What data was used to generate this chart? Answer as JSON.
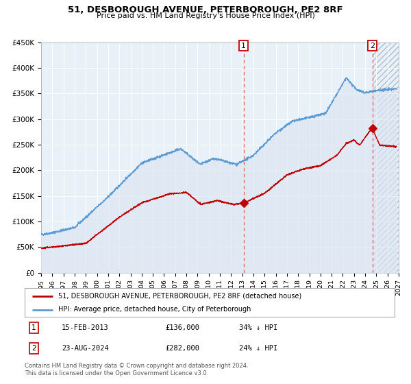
{
  "title": "51, DESBOROUGH AVENUE, PETERBOROUGH, PE2 8RF",
  "subtitle": "Price paid vs. HM Land Registry's House Price Index (HPI)",
  "legend_line1": "51, DESBOROUGH AVENUE, PETERBOROUGH, PE2 8RF (detached house)",
  "legend_line2": "HPI: Average price, detached house, City of Peterborough",
  "copyright": "Contains HM Land Registry data © Crown copyright and database right 2024.\nThis data is licensed under the Open Government Licence v3.0.",
  "sale1_date": 2013.12,
  "sale1_price": 136000,
  "sale2_date": 2024.64,
  "sale2_price": 282000,
  "hpi_color": "#5b9bd5",
  "price_color": "#c00000",
  "hpi_fill_color": "#dce6f1",
  "hatch_color": "#b0bcd0",
  "vline_color": "#e06060",
  "ylim": [
    0,
    450000
  ],
  "xlim_start": 1995,
  "xlim_end": 2027,
  "background_color": "#ffffff",
  "plot_bg_color": "#e8f0f8"
}
